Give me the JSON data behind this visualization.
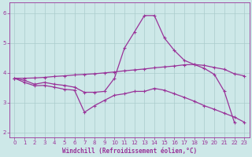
{
  "xlabel": "Windchill (Refroidissement éolien,°C)",
  "background_color": "#cde8e8",
  "grid_color": "#aacccc",
  "line_color": "#993399",
  "xlim": [
    -0.5,
    23.5
  ],
  "ylim": [
    1.85,
    6.35
  ],
  "xticks": [
    0,
    1,
    2,
    3,
    4,
    5,
    6,
    7,
    8,
    9,
    10,
    11,
    12,
    13,
    14,
    15,
    16,
    17,
    18,
    19,
    20,
    21,
    22,
    23
  ],
  "yticks": [
    2,
    3,
    4,
    5,
    6
  ],
  "curve_peak_x": [
    0,
    1,
    2,
    3,
    4,
    5,
    6,
    7,
    8,
    9,
    10,
    11,
    12,
    13,
    14,
    15,
    16,
    17,
    18,
    19,
    20,
    21,
    22,
    23
  ],
  "curve_peak_y": [
    3.82,
    3.75,
    3.62,
    3.68,
    3.62,
    3.58,
    3.52,
    3.35,
    3.35,
    3.38,
    3.82,
    4.83,
    5.37,
    5.92,
    5.92,
    5.17,
    4.75,
    4.42,
    4.28,
    4.15,
    3.95,
    3.38,
    2.35,
    null
  ],
  "curve_diag_x": [
    0,
    1,
    2,
    3,
    4,
    5,
    6,
    7,
    8,
    9,
    10,
    11,
    12,
    13,
    14,
    15,
    16,
    17,
    18,
    19,
    20,
    21,
    22,
    23
  ],
  "curve_diag_y": [
    3.82,
    3.68,
    3.57,
    3.58,
    3.52,
    3.45,
    3.42,
    2.68,
    2.9,
    3.08,
    3.25,
    3.3,
    3.38,
    3.38,
    3.48,
    3.42,
    3.3,
    3.18,
    3.05,
    2.9,
    2.78,
    2.65,
    2.52,
    2.35
  ],
  "curve_flat_x": [
    0,
    1,
    2,
    3,
    4,
    5,
    6,
    7,
    8,
    9,
    10,
    11,
    12,
    13,
    14,
    15,
    16,
    17,
    18,
    19,
    20,
    21,
    22,
    23
  ],
  "curve_flat_y": [
    3.82,
    3.82,
    3.83,
    3.85,
    3.88,
    3.9,
    3.93,
    3.95,
    3.97,
    4.0,
    4.03,
    4.07,
    4.1,
    4.13,
    4.17,
    4.2,
    4.23,
    4.27,
    4.28,
    4.25,
    4.18,
    4.12,
    3.97,
    3.9
  ]
}
